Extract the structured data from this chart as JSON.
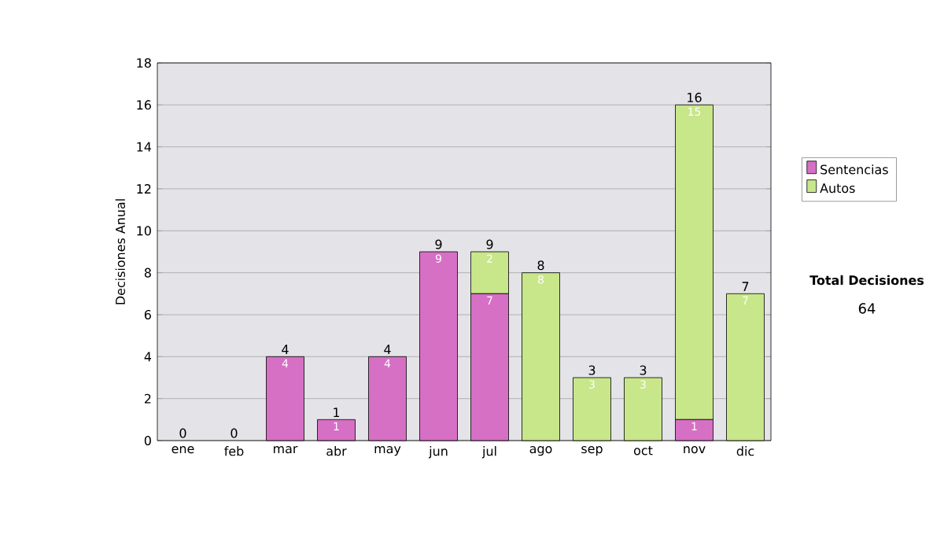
{
  "chart_data": {
    "type": "bar",
    "stacked": true,
    "ylabel": "Decisiones Anual",
    "categories": [
      "ene",
      "feb",
      "mar",
      "abr",
      "may",
      "jun",
      "jul",
      "ago",
      "sep",
      "oct",
      "nov",
      "dic"
    ],
    "series": [
      {
        "name": "Sentencias",
        "color": "#d670c4",
        "values": [
          0,
          0,
          4,
          1,
          4,
          9,
          7,
          0,
          0,
          0,
          1,
          0
        ],
        "value_labels": [
          null,
          null,
          "4",
          "1",
          "4",
          "9",
          "7",
          null,
          null,
          null,
          "1",
          null
        ]
      },
      {
        "name": "Autos",
        "color": "#c8e68a",
        "values": [
          0,
          0,
          0,
          0,
          0,
          0,
          2,
          8,
          3,
          3,
          15,
          7
        ],
        "value_labels": [
          null,
          null,
          null,
          null,
          null,
          null,
          "2",
          "8",
          "3",
          "3",
          "15",
          "7"
        ]
      }
    ],
    "totals": [
      "0",
      "0",
      "4",
      "1",
      "4",
      "9",
      "9",
      "8",
      "3",
      "3",
      "16",
      "7"
    ],
    "ylim": [
      0,
      18
    ],
    "yticks": [
      0,
      2,
      4,
      6,
      8,
      10,
      12,
      14,
      16,
      18
    ],
    "grid": "y",
    "legend": "right",
    "annotations": [
      "Total Decisiones",
      "64"
    ]
  }
}
